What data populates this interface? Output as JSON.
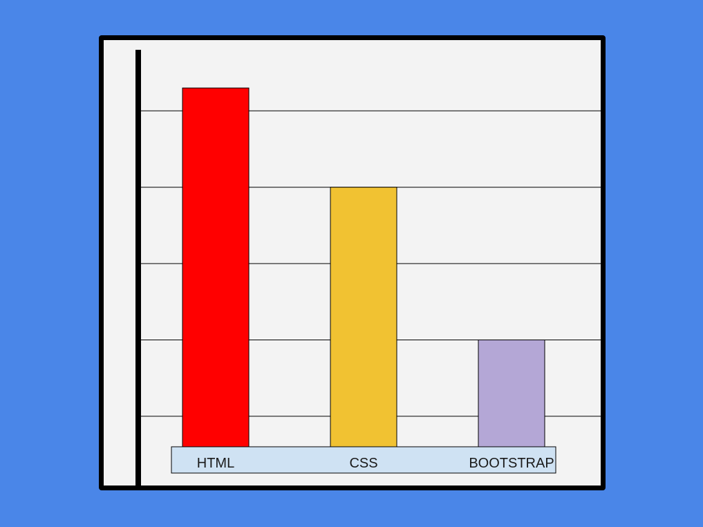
{
  "chart_data": {
    "type": "bar",
    "title": "",
    "xlabel": "",
    "ylabel": "",
    "categories": [
      "HTML",
      "CSS",
      "BOOTSTRAP"
    ],
    "values": [
      23.5,
      17,
      7
    ],
    "ylim": [
      0,
      26
    ],
    "y_gridlines": [
      2,
      7,
      12,
      17,
      22
    ],
    "grid": true,
    "legend": "none",
    "colors": {
      "background": "#4a86e8",
      "plot_background": "#f3f3f3",
      "frame": "#000000",
      "axis": "#000000",
      "gridline": "#000000",
      "category_band": "#cfe2f3",
      "bars": [
        "#ff0000",
        "#f1c232",
        "#b4a7d6"
      ],
      "bar_outline": "#000000"
    }
  }
}
